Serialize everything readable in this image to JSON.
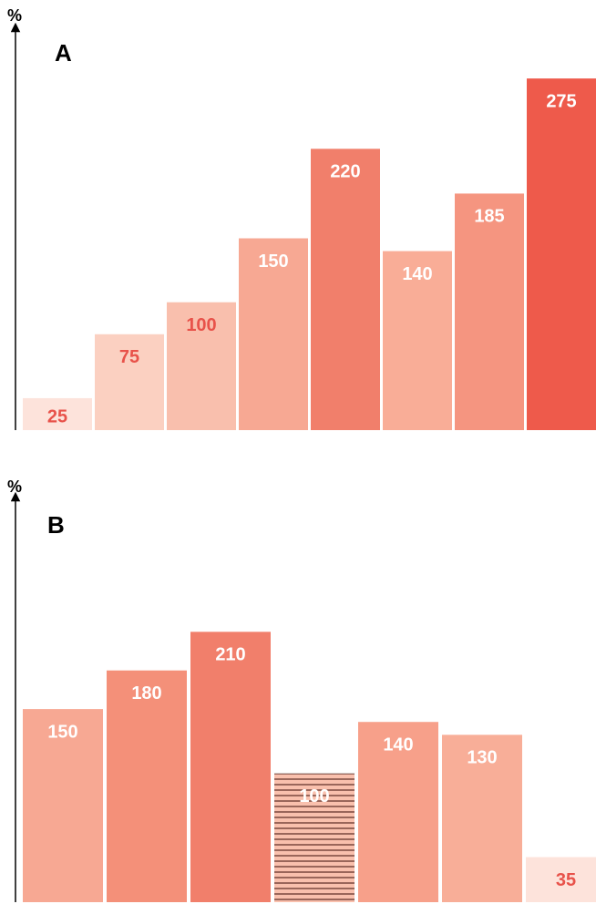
{
  "chart_data": [
    {
      "type": "bar",
      "title": "A",
      "y_label": "%",
      "values": [
        25,
        75,
        100,
        150,
        220,
        140,
        185,
        275
      ],
      "colors": [
        "#fde3db",
        "#fbd0c1",
        "#f9bfad",
        "#f7a893",
        "#f17f6b",
        "#f9ad97",
        "#f59580",
        "#ee5a4b"
      ],
      "label_colors": [
        "#e8524a",
        "#e8524a",
        "#e8524a",
        "#ffffff",
        "#ffffff",
        "#ffffff",
        "#ffffff",
        "#ffffff"
      ],
      "ylim": [
        0,
        315
      ]
    },
    {
      "type": "bar",
      "title": "B",
      "y_label": "%",
      "values": [
        150,
        180,
        210,
        100,
        140,
        130,
        35
      ],
      "colors": [
        "#f7a893",
        "#f49079",
        "#f17f6b",
        "#f9c0ad",
        "#f7a08a",
        "#f8ae98",
        "#fde3db"
      ],
      "label_colors": [
        "#ffffff",
        "#ffffff",
        "#ffffff",
        "#ffffff",
        "#ffffff",
        "#ffffff",
        "#e8524a"
      ],
      "hatched": [
        false,
        false,
        false,
        true,
        false,
        false,
        false
      ],
      "ylim": [
        0,
        315
      ]
    }
  ]
}
